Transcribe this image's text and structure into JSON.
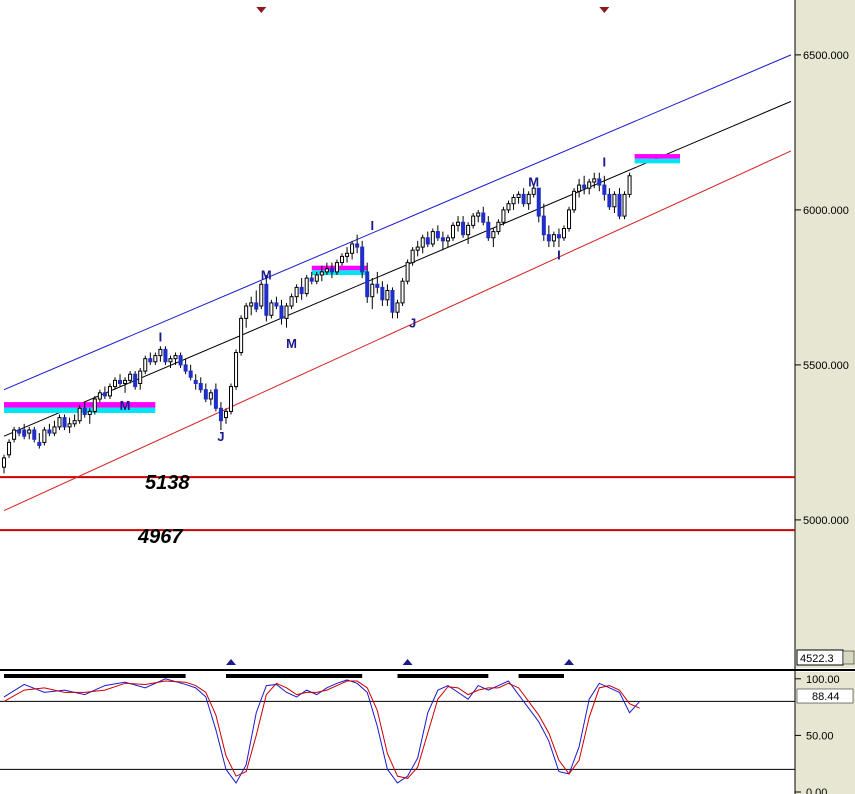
{
  "colors": {
    "background": "#ffffff",
    "axis_panel": "#e6e6d2",
    "up_candle": "#ffffff",
    "down_candle": "#1f2fc8",
    "channel_upper": "#1a1acc",
    "channel_mid": "#000000",
    "channel_lower": "#d42020",
    "support_lines": "#cc0000",
    "fast_stoch": "#1a1acc",
    "slow_stoch": "#cc0000",
    "magenta_zone": "#ff00ff",
    "cyan_zone": "#00e5f0",
    "marker": "#8b1a1a",
    "marker_up": "#1a1a8c"
  },
  "chart_data": [
    {
      "type": "candlestick",
      "name": "price-panel",
      "y_axis": {
        "ticks": [
          {
            "value": 5000,
            "label": "5000.000"
          },
          {
            "value": 5500,
            "label": "5500.000"
          },
          {
            "value": 6000,
            "label": "6000.000"
          },
          {
            "value": 6500,
            "label": "6500.000"
          }
        ],
        "ylim": [
          4522.3,
          6677
        ],
        "min_readout": "4522.3"
      },
      "x": [
        0,
        156
      ],
      "candles": [
        [
          5170,
          5210,
          5150,
          5200
        ],
        [
          5210,
          5260,
          5200,
          5250
        ],
        [
          5260,
          5300,
          5250,
          5290
        ],
        [
          5290,
          5300,
          5270,
          5280
        ],
        [
          5290,
          5310,
          5260,
          5270
        ],
        [
          5280,
          5300,
          5260,
          5290
        ],
        [
          5290,
          5300,
          5250,
          5260
        ],
        [
          5250,
          5280,
          5230,
          5240
        ],
        [
          5250,
          5300,
          5240,
          5290
        ],
        [
          5290,
          5310,
          5270,
          5280
        ],
        [
          5280,
          5320,
          5270,
          5300
        ],
        [
          5300,
          5340,
          5290,
          5330
        ],
        [
          5330,
          5340,
          5290,
          5300
        ],
        [
          5300,
          5330,
          5280,
          5310
        ],
        [
          5310,
          5340,
          5300,
          5320
        ],
        [
          5320,
          5370,
          5310,
          5360
        ],
        [
          5360,
          5380,
          5330,
          5340
        ],
        [
          5340,
          5360,
          5310,
          5350
        ],
        [
          5350,
          5400,
          5340,
          5390
        ],
        [
          5390,
          5420,
          5380,
          5410
        ],
        [
          5410,
          5430,
          5390,
          5400
        ],
        [
          5400,
          5440,
          5390,
          5430
        ],
        [
          5430,
          5460,
          5420,
          5450
        ],
        [
          5450,
          5470,
          5430,
          5440
        ],
        [
          5440,
          5460,
          5410,
          5450
        ],
        [
          5450,
          5480,
          5440,
          5470
        ],
        [
          5470,
          5480,
          5420,
          5430
        ],
        [
          5440,
          5490,
          5420,
          5480
        ],
        [
          5480,
          5530,
          5470,
          5520
        ],
        [
          5520,
          5540,
          5500,
          5510
        ],
        [
          5510,
          5540,
          5500,
          5530
        ],
        [
          5530,
          5560,
          5510,
          5550
        ],
        [
          5550,
          5560,
          5500,
          5510
        ],
        [
          5510,
          5530,
          5490,
          5520
        ],
        [
          5520,
          5540,
          5500,
          5530
        ],
        [
          5530,
          5540,
          5490,
          5500
        ],
        [
          5500,
          5520,
          5470,
          5480
        ],
        [
          5480,
          5500,
          5450,
          5460
        ],
        [
          5450,
          5470,
          5420,
          5440
        ],
        [
          5440,
          5460,
          5410,
          5420
        ],
        [
          5420,
          5440,
          5380,
          5390
        ],
        [
          5390,
          5420,
          5370,
          5410
        ],
        [
          5420,
          5440,
          5350,
          5360
        ],
        [
          5360,
          5380,
          5290,
          5320
        ],
        [
          5330,
          5360,
          5310,
          5350
        ],
        [
          5350,
          5440,
          5340,
          5430
        ],
        [
          5430,
          5550,
          5420,
          5540
        ],
        [
          5540,
          5660,
          5530,
          5650
        ],
        [
          5650,
          5700,
          5620,
          5690
        ],
        [
          5690,
          5720,
          5660,
          5700
        ],
        [
          5700,
          5740,
          5670,
          5680
        ],
        [
          5690,
          5770,
          5680,
          5760
        ],
        [
          5760,
          5790,
          5640,
          5660
        ],
        [
          5660,
          5710,
          5650,
          5700
        ],
        [
          5700,
          5720,
          5680,
          5690
        ],
        [
          5690,
          5710,
          5630,
          5650
        ],
        [
          5650,
          5700,
          5620,
          5690
        ],
        [
          5690,
          5730,
          5680,
          5720
        ],
        [
          5720,
          5760,
          5700,
          5750
        ],
        [
          5750,
          5780,
          5710,
          5730
        ],
        [
          5730,
          5790,
          5720,
          5780
        ],
        [
          5780,
          5800,
          5760,
          5770
        ],
        [
          5770,
          5800,
          5760,
          5790
        ],
        [
          5790,
          5820,
          5770,
          5800
        ],
        [
          5800,
          5830,
          5790,
          5810
        ],
        [
          5810,
          5830,
          5780,
          5800
        ],
        [
          5800,
          5840,
          5790,
          5830
        ],
        [
          5830,
          5860,
          5820,
          5850
        ],
        [
          5850,
          5880,
          5830,
          5860
        ],
        [
          5860,
          5900,
          5840,
          5890
        ],
        [
          5890,
          5920,
          5860,
          5880
        ],
        [
          5880,
          5900,
          5780,
          5800
        ],
        [
          5800,
          5830,
          5700,
          5720
        ],
        [
          5720,
          5780,
          5680,
          5760
        ],
        [
          5760,
          5800,
          5730,
          5750
        ],
        [
          5750,
          5770,
          5690,
          5710
        ],
        [
          5710,
          5760,
          5690,
          5740
        ],
        [
          5740,
          5750,
          5650,
          5670
        ],
        [
          5670,
          5710,
          5650,
          5700
        ],
        [
          5700,
          5780,
          5690,
          5770
        ],
        [
          5770,
          5840,
          5760,
          5830
        ],
        [
          5830,
          5880,
          5820,
          5870
        ],
        [
          5870,
          5900,
          5850,
          5880
        ],
        [
          5880,
          5920,
          5860,
          5910
        ],
        [
          5910,
          5930,
          5880,
          5890
        ],
        [
          5890,
          5940,
          5880,
          5930
        ],
        [
          5930,
          5950,
          5900,
          5910
        ],
        [
          5910,
          5930,
          5870,
          5900
        ],
        [
          5900,
          5920,
          5880,
          5910
        ],
        [
          5910,
          5960,
          5900,
          5950
        ],
        [
          5950,
          5980,
          5930,
          5960
        ],
        [
          5960,
          5980,
          5910,
          5920
        ],
        [
          5920,
          5960,
          5890,
          5950
        ],
        [
          5950,
          5990,
          5940,
          5980
        ],
        [
          5980,
          6000,
          5960,
          5990
        ],
        [
          5990,
          6010,
          5950,
          5960
        ],
        [
          5960,
          5980,
          5900,
          5910
        ],
        [
          5910,
          5940,
          5880,
          5930
        ],
        [
          5930,
          5970,
          5920,
          5960
        ],
        [
          5960,
          6010,
          5950,
          6000
        ],
        [
          6000,
          6030,
          5990,
          6020
        ],
        [
          6020,
          6050,
          6000,
          6040
        ],
        [
          6040,
          6060,
          6020,
          6050
        ],
        [
          6050,
          6070,
          6010,
          6020
        ],
        [
          6020,
          6060,
          6000,
          6050
        ],
        [
          6050,
          6080,
          6040,
          6070
        ],
        [
          6070,
          6060,
          5960,
          5980
        ],
        [
          5980,
          6020,
          5900,
          5920
        ],
        [
          5920,
          5950,
          5880,
          5900
        ],
        [
          5900,
          5930,
          5880,
          5920
        ],
        [
          5920,
          5940,
          5880,
          5910
        ],
        [
          5910,
          5950,
          5900,
          5940
        ],
        [
          5940,
          6010,
          5930,
          6000
        ],
        [
          6000,
          6070,
          5990,
          6060
        ],
        [
          6060,
          6100,
          6040,
          6080
        ],
        [
          6080,
          6110,
          6050,
          6070
        ],
        [
          6070,
          6100,
          6050,
          6090
        ],
        [
          6090,
          6120,
          6070,
          6100
        ],
        [
          6100,
          6120,
          6060,
          6080
        ],
        [
          6080,
          6110,
          6030,
          6050
        ],
        [
          6050,
          6070,
          6000,
          6010
        ],
        [
          6010,
          6060,
          5990,
          6050
        ],
        [
          6050,
          6070,
          5970,
          5980
        ],
        [
          5980,
          6060,
          5970,
          6050
        ],
        [
          6050,
          6120,
          6040,
          6110
        ]
      ],
      "channels": [
        {
          "name": "upper",
          "from": {
            "x": 0,
            "y": 5420
          },
          "to": {
            "x": 156,
            "y": 6500
          }
        },
        {
          "name": "middle",
          "from": {
            "x": 0,
            "y": 5270
          },
          "to": {
            "x": 156,
            "y": 6350
          }
        },
        {
          "name": "lower",
          "from": {
            "x": 0,
            "y": 5030
          },
          "to": {
            "x": 156,
            "y": 6190
          }
        }
      ],
      "levels": [
        {
          "value": 5138,
          "label": "5138"
        },
        {
          "value": 4967,
          "label": "4967"
        }
      ],
      "zones": [
        {
          "x0": 0,
          "x1": 30,
          "y0": 5345,
          "y1": 5380,
          "style": "cyan-magenta"
        },
        {
          "x0": 61,
          "x1": 72,
          "y0": 5790,
          "y1": 5820,
          "style": "cyan-magenta"
        },
        {
          "x0": 125,
          "x1": 134,
          "y0": 6150,
          "y1": 6180,
          "style": "cyan-magenta"
        }
      ],
      "wave_labels": [
        {
          "x": 24,
          "y": 5355,
          "text": "M"
        },
        {
          "x": 31,
          "y": 5575,
          "text": "I"
        },
        {
          "x": 43,
          "y": 5255,
          "text": "J"
        },
        {
          "x": 52,
          "y": 5775,
          "text": "M"
        },
        {
          "x": 57,
          "y": 5555,
          "text": "M"
        },
        {
          "x": 73,
          "y": 5935,
          "text": "I"
        },
        {
          "x": 81,
          "y": 5620,
          "text": "J"
        },
        {
          "x": 105,
          "y": 6075,
          "text": "M"
        },
        {
          "x": 110,
          "y": 5840,
          "text": "I"
        },
        {
          "x": 119,
          "y": 6140,
          "text": "I"
        }
      ],
      "top_markers_x": [
        51,
        119
      ],
      "bottom_markers_x": [
        45,
        80,
        112
      ]
    },
    {
      "type": "line",
      "name": "stochastic-panel",
      "y_axis": {
        "ticks": [
          {
            "value": 0,
            "label": "0.00"
          },
          {
            "value": 50,
            "label": "50.00"
          },
          {
            "value": 100,
            "label": "100.00"
          }
        ],
        "ylim": [
          0,
          106
        ]
      },
      "current_value": "88.44",
      "guide_levels": [
        80,
        20
      ],
      "series": [
        {
          "key": "fast",
          "x": [
            0,
            4,
            8,
            12,
            16,
            20,
            24,
            28,
            32,
            36,
            38,
            40,
            42,
            44,
            46,
            48,
            50,
            52,
            54,
            56,
            58,
            60,
            62,
            64,
            66,
            68,
            70,
            72,
            74,
            76,
            78,
            80,
            82,
            84,
            86,
            88,
            90,
            92,
            94,
            96,
            98,
            100,
            102,
            104,
            106,
            108,
            110,
            112,
            114,
            116,
            118,
            120,
            122,
            124,
            126
          ],
          "values": [
            84,
            95,
            88,
            90,
            86,
            94,
            97,
            92,
            100,
            95,
            92,
            84,
            55,
            20,
            8,
            24,
            70,
            94,
            95,
            88,
            84,
            90,
            86,
            92,
            96,
            99,
            96,
            88,
            58,
            20,
            8,
            14,
            30,
            70,
            90,
            94,
            88,
            82,
            94,
            90,
            94,
            98,
            86,
            74,
            62,
            45,
            18,
            16,
            40,
            82,
            96,
            92,
            88,
            70,
            80
          ]
        },
        {
          "key": "slow",
          "x": [
            0,
            4,
            8,
            12,
            16,
            20,
            24,
            28,
            32,
            36,
            38,
            40,
            42,
            44,
            46,
            48,
            50,
            52,
            54,
            56,
            58,
            60,
            62,
            64,
            66,
            68,
            70,
            72,
            74,
            76,
            78,
            80,
            82,
            84,
            86,
            88,
            90,
            92,
            94,
            96,
            98,
            100,
            102,
            104,
            106,
            108,
            110,
            112,
            114,
            116,
            118,
            120,
            122,
            124,
            126
          ],
          "values": [
            80,
            90,
            92,
            88,
            88,
            90,
            96,
            95,
            98,
            97,
            94,
            88,
            68,
            32,
            14,
            18,
            50,
            86,
            96,
            92,
            86,
            88,
            88,
            90,
            94,
            98,
            98,
            92,
            72,
            34,
            14,
            12,
            22,
            52,
            82,
            93,
            92,
            86,
            90,
            92,
            92,
            96,
            92,
            80,
            68,
            52,
            28,
            16,
            28,
            66,
            92,
            94,
            90,
            78,
            74
          ]
        }
      ],
      "signal_bars": [
        [
          0,
          36
        ],
        [
          44,
          71
        ],
        [
          78,
          96
        ],
        [
          102,
          111
        ]
      ]
    }
  ]
}
